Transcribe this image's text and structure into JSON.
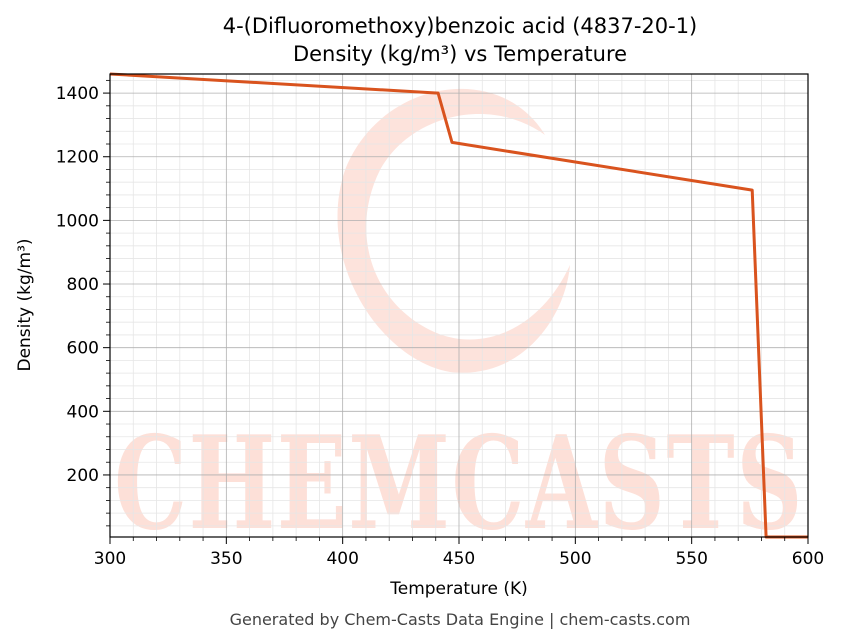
{
  "title_line1": "4-(Difluoromethoxy)benzoic acid (4837-20-1)",
  "title_line2": "Density (kg/m³) vs Temperature",
  "watermark": "CHEMCASTS",
  "footer": "Generated by Chem-Casts Data Engine | chem-casts.com",
  "colors": {
    "line": "#d9531e",
    "grid_major": "#b0b0b0",
    "grid_minor": "#e6e6e6",
    "watermark": "#fde0d8"
  },
  "chart_data": {
    "type": "line",
    "title": "4-(Difluoromethoxy)benzoic acid (4837-20-1)\nDensity (kg/m³) vs Temperature",
    "xlabel": "Temperature (K)",
    "ylabel": "Density (kg/m³)",
    "xlim": [
      300,
      600
    ],
    "ylim": [
      5,
      1460
    ],
    "xticks": [
      300,
      350,
      400,
      450,
      500,
      550,
      600
    ],
    "yticks": [
      200,
      400,
      600,
      800,
      1000,
      1200,
      1400
    ],
    "grid": true,
    "series": [
      {
        "x": [
          300,
          441,
          447,
          576,
          582,
          600
        ],
        "y": [
          1460,
          1400,
          1245,
          1095,
          5,
          5
        ]
      }
    ]
  }
}
